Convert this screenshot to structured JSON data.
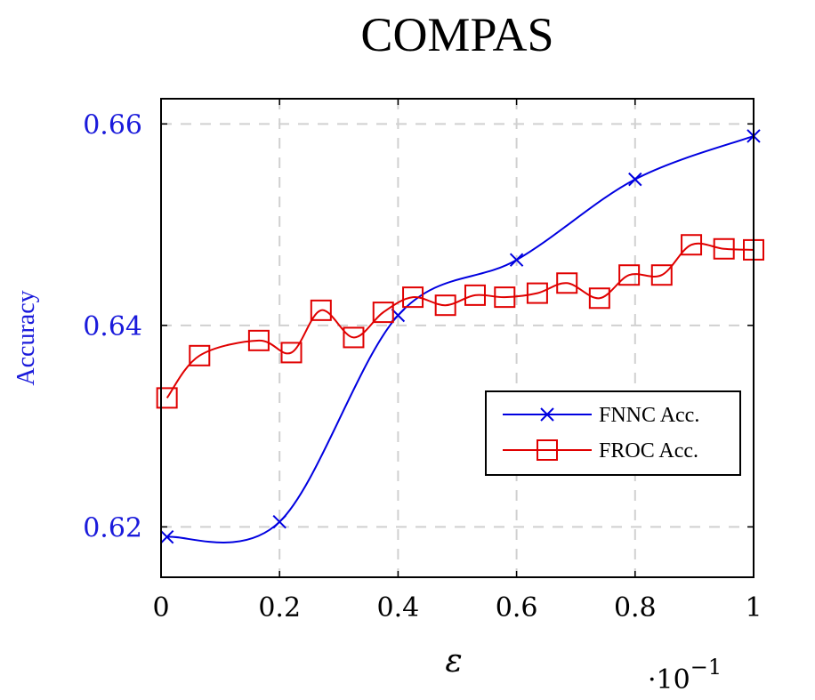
{
  "chart_data": {
    "type": "line",
    "title": "COMPAS",
    "xlabel": "ε",
    "ylabel": "Accuracy",
    "x_multiplier": "·10",
    "x_multiplier_exp": "−1",
    "xlim": [
      0,
      1
    ],
    "ylim": [
      0.615,
      0.6625
    ],
    "xticks": [
      0,
      0.2,
      0.4,
      0.6,
      0.8,
      1
    ],
    "xtick_labels": [
      "0",
      "0.2",
      "0.4",
      "0.6",
      "0.8",
      "1"
    ],
    "yticks": [
      0.62,
      0.64,
      0.66
    ],
    "ytick_labels": [
      "0.62",
      "0.64",
      "0.66"
    ],
    "grid": true,
    "legend_position": "lower-right",
    "series": [
      {
        "name": "FNNC Acc.",
        "color": "#0000e0",
        "marker": "x",
        "x": [
          0.01,
          0.2,
          0.4,
          0.6,
          0.8,
          1.0
        ],
        "y": [
          0.619,
          0.6205,
          0.641,
          0.6465,
          0.6545,
          0.6588
        ]
      },
      {
        "name": "FROC Acc.",
        "color": "#e00000",
        "marker": "square",
        "x": [
          0.01,
          0.065,
          0.165,
          0.22,
          0.27,
          0.325,
          0.375,
          0.425,
          0.48,
          0.53,
          0.58,
          0.635,
          0.685,
          0.74,
          0.79,
          0.845,
          0.895,
          0.95,
          1.0
        ],
        "y": [
          0.6328,
          0.637,
          0.6385,
          0.6373,
          0.6415,
          0.6388,
          0.6413,
          0.6428,
          0.642,
          0.643,
          0.6428,
          0.6432,
          0.6442,
          0.6427,
          0.645,
          0.645,
          0.648,
          0.6476,
          0.6475
        ]
      }
    ]
  }
}
